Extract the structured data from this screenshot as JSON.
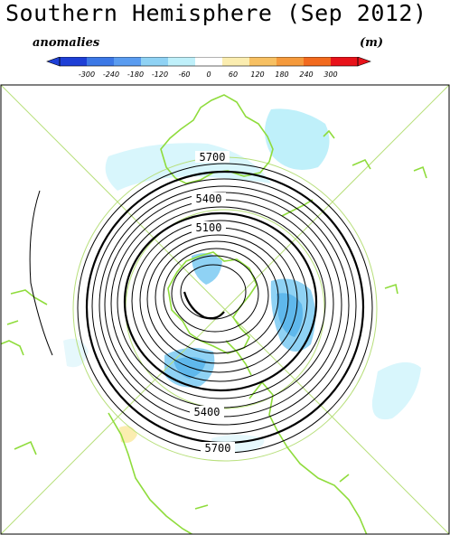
{
  "header": {
    "title": "Southern Hemisphere (Sep 2012)",
    "anomalies_label": "anomalies",
    "units_label": "(m)"
  },
  "colorbar": {
    "ticks": [
      "-300",
      "-240",
      "-180",
      "-120",
      "-60",
      "0",
      "60",
      "120",
      "180",
      "240",
      "300"
    ],
    "colors": [
      "#1e3fd6",
      "#3c78e6",
      "#5a9cf0",
      "#8fd2f4",
      "#bff0fa",
      "#ffffff",
      "#fbedb0",
      "#f7c062",
      "#f59a3c",
      "#f26a1e",
      "#e8121a"
    ]
  },
  "map": {
    "projection": "polar stereographic",
    "contour_labels": [
      "5700",
      "5400",
      "5100",
      "5400",
      "5700"
    ],
    "coast_color": "#8fdc3c",
    "contour_color": "#000000"
  }
}
